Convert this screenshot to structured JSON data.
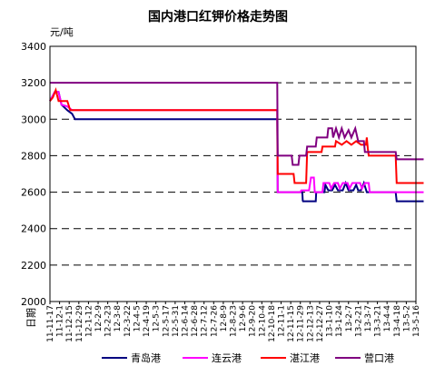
{
  "chart_data": {
    "type": "line",
    "title": "国内港口红钾价格走势图",
    "ylabel": "元/吨",
    "xlabel": "日期",
    "ylim": [
      2000,
      3400
    ],
    "yticks": [
      2000,
      2200,
      2400,
      2600,
      2800,
      3000,
      3200,
      3400
    ],
    "grid": true,
    "legend_position": "bottom",
    "categories": [
      "11-11-17",
      "11-12-1",
      "11-12-15",
      "11-12-29",
      "12-1-12",
      "12-2-9",
      "12-2-23",
      "12-3-8",
      "12-3-22",
      "12-4-5",
      "12-4-19",
      "12-5-3",
      "12-5-17",
      "12-5-31",
      "12-6-14",
      "12-6-28",
      "12-7-12",
      "12-7-26",
      "12-8-9",
      "12-8-23",
      "12-9-6",
      "12-9-20",
      "12-10-4",
      "12-10-18",
      "12-11-1",
      "12-11-15",
      "12-11-29",
      "12-12-13",
      "12-12-27",
      "13-1-10",
      "13-1-24",
      "13-2-7",
      "13-2-21",
      "13-3-7",
      "13-3-21",
      "13-4-4",
      "13-4-18",
      "13-5-2",
      "13-5-16"
    ],
    "series": [
      {
        "name": "青岛港",
        "color": "#000080",
        "values": [
          [
            0,
            3100
          ],
          [
            0.5,
            3150
          ],
          [
            0.9,
            3150
          ],
          [
            1.2,
            3080
          ],
          [
            1.8,
            3050
          ],
          [
            2.3,
            3030
          ],
          [
            2.6,
            3000
          ],
          [
            23.6,
            3000
          ],
          [
            23.65,
            2600
          ],
          [
            26.2,
            2600
          ],
          [
            26.25,
            2550
          ],
          [
            26.2,
            2550
          ],
          [
            27.6,
            2550
          ],
          [
            27.65,
            2600
          ],
          [
            28.5,
            2600
          ],
          [
            28.6,
            2640
          ],
          [
            28.9,
            2610
          ],
          [
            29.3,
            2610
          ],
          [
            29.6,
            2640
          ],
          [
            29.9,
            2610
          ],
          [
            30.4,
            2610
          ],
          [
            30.7,
            2650
          ],
          [
            31.0,
            2610
          ],
          [
            31.5,
            2610
          ],
          [
            31.8,
            2640
          ],
          [
            32.0,
            2610
          ],
          [
            32.3,
            2610
          ],
          [
            32.6,
            2650
          ],
          [
            32.9,
            2600
          ],
          [
            35.9,
            2600
          ],
          [
            36.0,
            2550
          ],
          [
            38.8,
            2550
          ]
        ]
      },
      {
        "name": "连云港",
        "color": "#FF00FF",
        "values": [
          [
            0,
            3100
          ],
          [
            0.5,
            3150
          ],
          [
            0.9,
            3150
          ],
          [
            1.2,
            3080
          ],
          [
            1.8,
            3070
          ],
          [
            2.3,
            3050
          ],
          [
            23.6,
            3050
          ],
          [
            23.65,
            2600
          ],
          [
            26.0,
            2600
          ],
          [
            26.1,
            2610
          ],
          [
            26.9,
            2610
          ],
          [
            27.1,
            2680
          ],
          [
            27.4,
            2680
          ],
          [
            27.5,
            2600
          ],
          [
            28.3,
            2600
          ],
          [
            28.4,
            2650
          ],
          [
            29.0,
            2650
          ],
          [
            29.2,
            2620
          ],
          [
            29.5,
            2650
          ],
          [
            29.9,
            2650
          ],
          [
            30.1,
            2620
          ],
          [
            30.4,
            2650
          ],
          [
            30.9,
            2650
          ],
          [
            31.1,
            2620
          ],
          [
            31.4,
            2650
          ],
          [
            32.2,
            2650
          ],
          [
            32.4,
            2620
          ],
          [
            32.7,
            2650
          ],
          [
            33.1,
            2650
          ],
          [
            33.2,
            2600
          ],
          [
            38.8,
            2600
          ]
        ]
      },
      {
        "name": "湛江港",
        "color": "#FF0000",
        "values": [
          [
            0,
            3100
          ],
          [
            0.3,
            3120
          ],
          [
            0.6,
            3160
          ],
          [
            0.9,
            3100
          ],
          [
            1.8,
            3100
          ],
          [
            2.1,
            3050
          ],
          [
            23.6,
            3050
          ],
          [
            23.65,
            2700
          ],
          [
            25.3,
            2700
          ],
          [
            25.4,
            2650
          ],
          [
            26.6,
            2650
          ],
          [
            26.7,
            2820
          ],
          [
            28.2,
            2820
          ],
          [
            28.3,
            2850
          ],
          [
            29.6,
            2850
          ],
          [
            29.7,
            2880
          ],
          [
            30.3,
            2860
          ],
          [
            30.8,
            2880
          ],
          [
            31.3,
            2860
          ],
          [
            31.8,
            2880
          ],
          [
            32.3,
            2860
          ],
          [
            32.8,
            2860
          ],
          [
            32.9,
            2900
          ],
          [
            33.0,
            2840
          ],
          [
            33.1,
            2800
          ],
          [
            35.9,
            2800
          ],
          [
            36.0,
            2650
          ],
          [
            38.8,
            2650
          ]
        ]
      },
      {
        "name": "营口港",
        "color": "#800080",
        "values": [
          [
            0,
            3200
          ],
          [
            23.6,
            3200
          ],
          [
            23.65,
            2800
          ],
          [
            25.1,
            2800
          ],
          [
            25.2,
            2750
          ],
          [
            25.8,
            2750
          ],
          [
            25.9,
            2800
          ],
          [
            26.6,
            2800
          ],
          [
            26.7,
            2850
          ],
          [
            27.6,
            2850
          ],
          [
            27.7,
            2900
          ],
          [
            28.8,
            2900
          ],
          [
            28.9,
            2950
          ],
          [
            29.3,
            2950
          ],
          [
            29.4,
            2900
          ],
          [
            29.7,
            2950
          ],
          [
            30.0,
            2900
          ],
          [
            30.3,
            2950
          ],
          [
            30.6,
            2900
          ],
          [
            31.0,
            2940
          ],
          [
            31.3,
            2900
          ],
          [
            31.7,
            2950
          ],
          [
            32.0,
            2880
          ],
          [
            32.6,
            2880
          ],
          [
            32.7,
            2820
          ],
          [
            35.9,
            2820
          ],
          [
            36.0,
            2780
          ],
          [
            38.8,
            2780
          ]
        ]
      }
    ]
  }
}
